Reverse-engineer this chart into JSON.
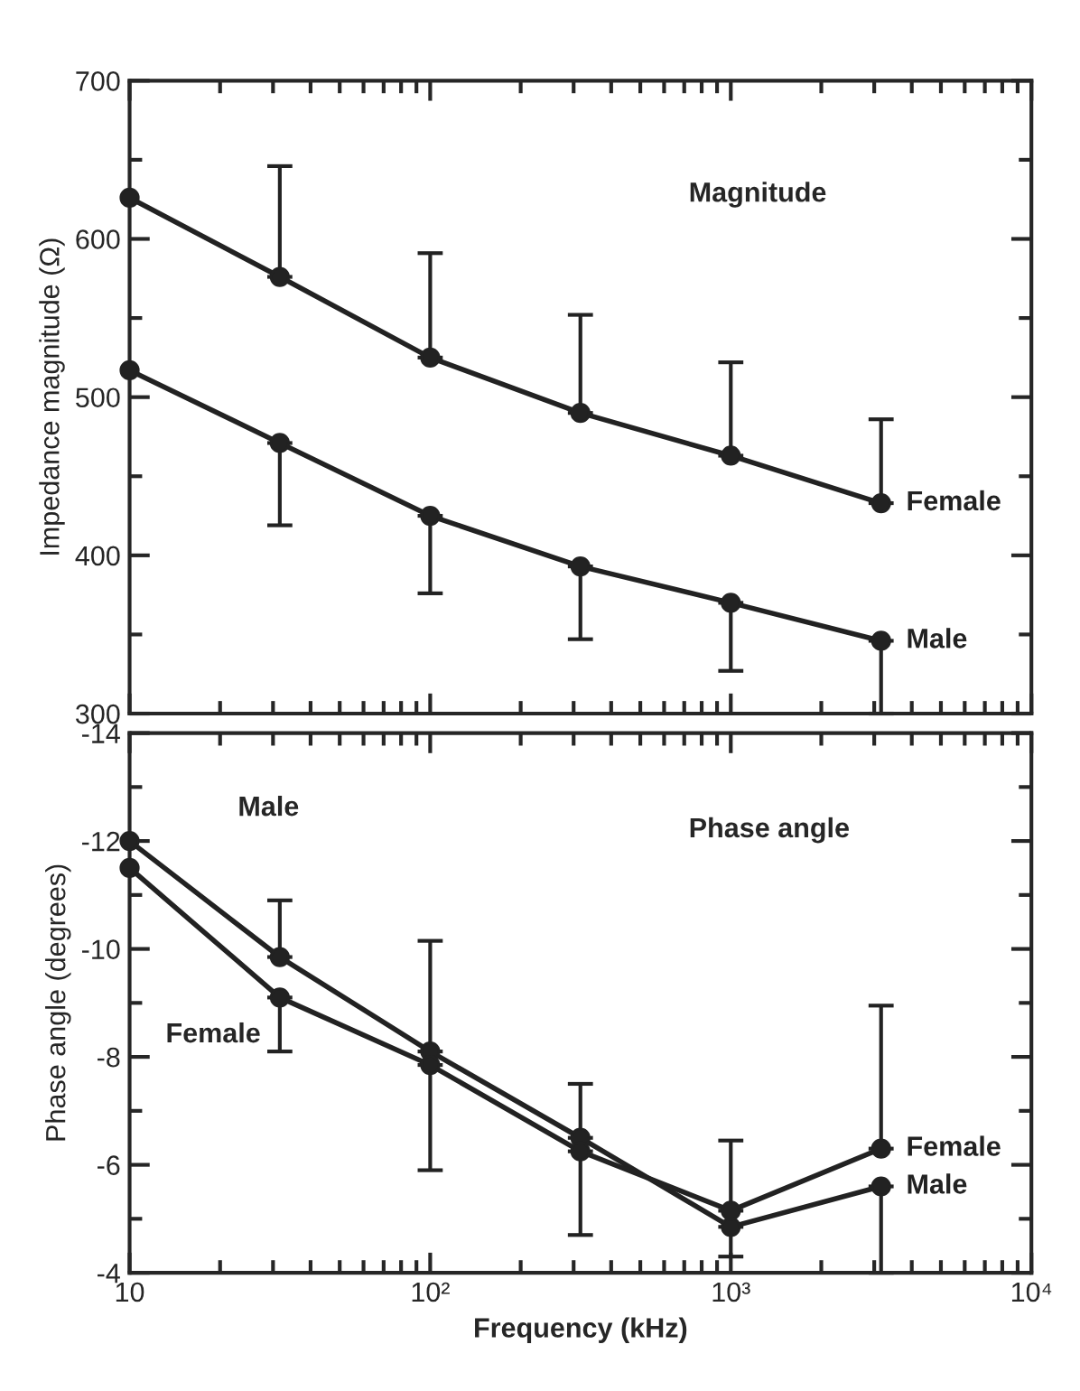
{
  "chart_data": [
    {
      "type": "line",
      "ylabel": "Impedance magnitude (Ω)",
      "x": [
        10,
        31.6,
        100,
        316,
        1000,
        3162
      ],
      "xlim": [
        10,
        10000
      ],
      "xticks": [
        {
          "value": 10,
          "label": null
        },
        {
          "value": 100,
          "label": null
        },
        {
          "value": 1000,
          "label": null
        },
        {
          "value": 10000,
          "label": null
        }
      ],
      "ylim": [
        300,
        700
      ],
      "yticks": [
        300,
        400,
        500,
        600,
        700
      ],
      "log": "x",
      "tick_labels": "y",
      "marker": "circle",
      "line_style": "solid",
      "legend": "right",
      "annotations": [
        "Magnitude"
      ],
      "series": [
        {
          "name": "Female",
          "color": "#222222",
          "values": [
            626,
            576,
            525,
            490,
            463,
            433
          ],
          "errors": [
            null,
            [
              576,
              646
            ],
            [
              525,
              591
            ],
            [
              490,
              552
            ],
            [
              463,
              522
            ],
            [
              433,
              486
            ]
          ]
        },
        {
          "name": "Male",
          "color": "#222222",
          "values": [
            517,
            471,
            425,
            393,
            370,
            346
          ],
          "errors": [
            null,
            [
              419,
              471
            ],
            [
              376,
              425
            ],
            [
              347,
              393
            ],
            [
              327,
              370
            ],
            [
              300,
              346
            ]
          ]
        }
      ]
    },
    {
      "type": "line",
      "xlabel": "Frequency (kHz)",
      "ylabel": "Phase angle (degrees)",
      "x": [
        10,
        31.6,
        100,
        316,
        1000,
        3162
      ],
      "xlim": [
        10,
        10000
      ],
      "xticks": [
        10,
        {
          "value": 100,
          "label": "10²"
        },
        {
          "value": 1000,
          "label": "10³"
        },
        {
          "value": 10000,
          "label": "10⁴"
        }
      ],
      "ylim": [
        -4,
        -14
      ],
      "yticks": [
        -14,
        -12,
        -10,
        -8,
        -6,
        -4
      ],
      "log": "x",
      "marker": "circle",
      "line_style": "solid",
      "legend": "right",
      "annotations": [
        "Phase angle",
        "Male",
        "Female"
      ],
      "series": [
        {
          "name": "Male",
          "color": "#222222",
          "values": [
            -12.0,
            -9.85,
            -8.1,
            -6.5,
            -4.85,
            -5.6
          ],
          "errors": [
            null,
            [
              -10.9,
              -9.85
            ],
            [
              -10.15,
              -8.1
            ],
            [
              -7.5,
              -6.5
            ],
            [
              -4.85,
              -4.3
            ],
            [
              -5.6,
              -4.0
            ]
          ]
        },
        {
          "name": "Female",
          "color": "#222222",
          "values": [
            -11.5,
            -9.1,
            -7.85,
            -6.25,
            -5.15,
            -6.3
          ],
          "errors": [
            null,
            [
              -9.1,
              -8.1
            ],
            [
              -7.85,
              -5.9
            ],
            [
              -6.25,
              -4.7
            ],
            [
              -6.45,
              -5.15
            ],
            [
              -8.95,
              -6.3
            ]
          ]
        }
      ]
    }
  ]
}
